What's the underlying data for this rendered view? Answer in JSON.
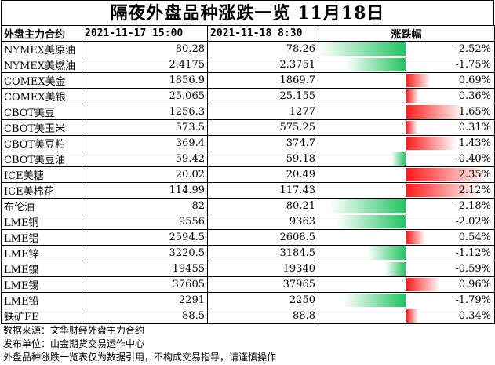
{
  "title": "隔夜外盘品种涨跌一览  11月18日",
  "header": {
    "name": "外盘主力合约",
    "prev": "2021-11-17 15:00",
    "curr": "2021-11-18  8:30",
    "change": "涨跌幅"
  },
  "max_abs_change": 2.52,
  "rows": [
    {
      "name": "NYMEX美原油",
      "prev": "80.28",
      "curr": "78.26",
      "change": "-2.52%",
      "value": -2.52
    },
    {
      "name": "NYMEX美燃油",
      "prev": "2.4175",
      "curr": "2.3751",
      "change": "-1.75%",
      "value": -1.75
    },
    {
      "name": "COMEX美金",
      "prev": "1856.9",
      "curr": "1869.7",
      "change": "0.69%",
      "value": 0.69
    },
    {
      "name": "COMEX美银",
      "prev": "25.065",
      "curr": "25.155",
      "change": "0.36%",
      "value": 0.36
    },
    {
      "name": "CBOT美豆",
      "prev": "1256.3",
      "curr": "1277",
      "change": "1.65%",
      "value": 1.65
    },
    {
      "name": "CBOT美玉米",
      "prev": "573.5",
      "curr": "575.25",
      "change": "0.31%",
      "value": 0.31
    },
    {
      "name": "CBOT美豆粕",
      "prev": "369.4",
      "curr": "374.7",
      "change": "1.43%",
      "value": 1.43
    },
    {
      "name": "CBOT美豆油",
      "prev": "59.42",
      "curr": "59.18",
      "change": "-0.40%",
      "value": -0.4
    },
    {
      "name": "ICE美糖",
      "prev": "20.02",
      "curr": "20.49",
      "change": "2.35%",
      "value": 2.35
    },
    {
      "name": "ICE美棉花",
      "prev": "114.99",
      "curr": "117.43",
      "change": "2.12%",
      "value": 2.12
    },
    {
      "name": "布伦油",
      "prev": "82",
      "curr": "80.21",
      "change": "-2.18%",
      "value": -2.18
    },
    {
      "name": "LME铜",
      "prev": "9556",
      "curr": "9363",
      "change": "-2.02%",
      "value": -2.02
    },
    {
      "name": "LME铝",
      "prev": "2594.5",
      "curr": "2608.5",
      "change": "0.54%",
      "value": 0.54
    },
    {
      "name": "LME锌",
      "prev": "3220.5",
      "curr": "3184.5",
      "change": "-1.12%",
      "value": -1.12
    },
    {
      "name": "LME镍",
      "prev": "19455",
      "curr": "19340",
      "change": "-0.59%",
      "value": -0.59
    },
    {
      "name": "LME锡",
      "prev": "37605",
      "curr": "37965",
      "change": "0.96%",
      "value": 0.96
    },
    {
      "name": "LME铅",
      "prev": "2291",
      "curr": "2250",
      "change": "-1.79%",
      "value": -1.79
    },
    {
      "name": "铁矿FE",
      "prev": "88.5",
      "curr": "88.8",
      "change": "0.34%",
      "value": 0.34
    }
  ],
  "footer": [
    "数据来源：文华财经外盘主力合约",
    "发布单位：山金期货交易运作中心",
    "外盘品种涨跌一览表仅为数据引用，不构成交易指导，请谨慎操作"
  ],
  "colors": {
    "up": "#ff1a1a",
    "down": "#22c462"
  }
}
